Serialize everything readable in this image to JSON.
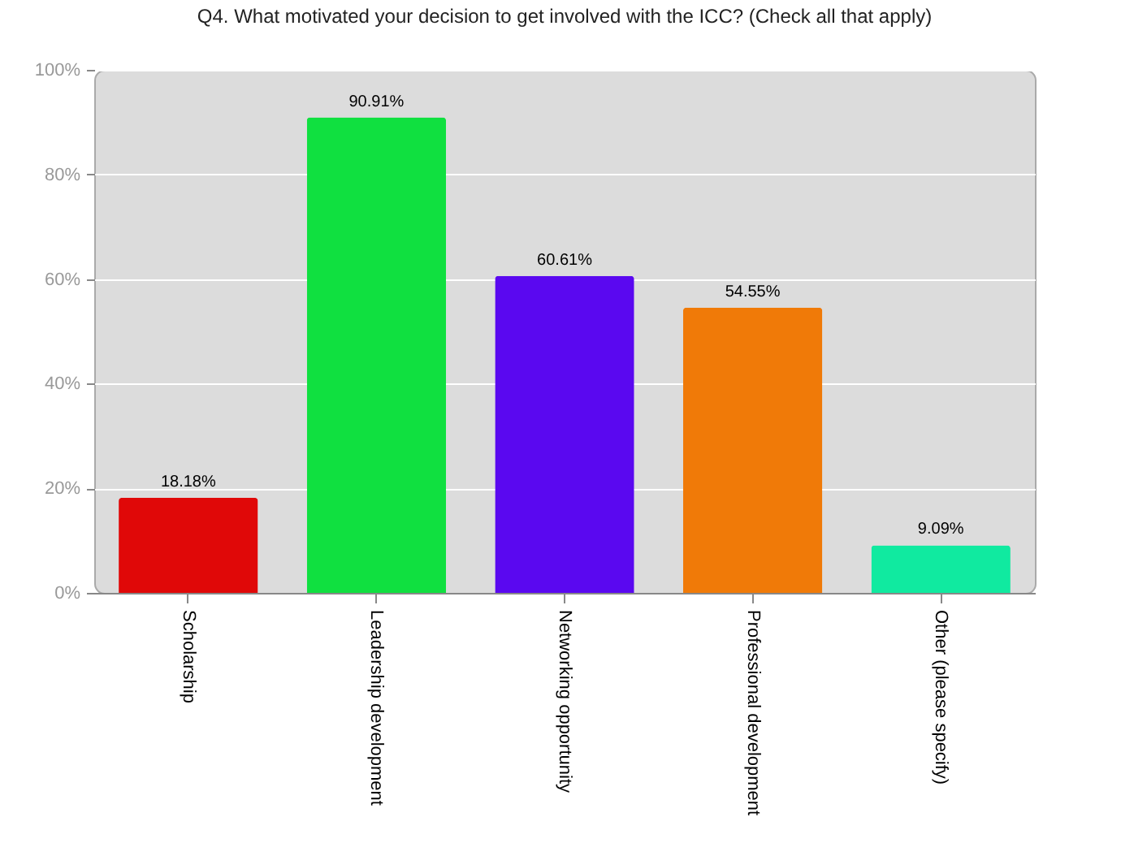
{
  "chart_data": {
    "type": "bar",
    "title": "Q4. What motivated your decision to get involved with the ICC? (Check all that apply)",
    "categories": [
      "Scholarship",
      "Leadership development",
      "Networking opportunity",
      "Professional development",
      "Other (please specify)"
    ],
    "values": [
      18.18,
      90.91,
      60.61,
      54.55,
      9.09
    ],
    "value_labels": [
      "18.18%",
      "90.91%",
      "60.61%",
      "54.55%",
      "9.09%"
    ],
    "colors": [
      "#e00808",
      "#10e040",
      "#5a08f0",
      "#f07a08",
      "#10eaa0"
    ],
    "ylim": [
      0,
      100
    ],
    "yticks": [
      {
        "value": 0,
        "label": "0%"
      },
      {
        "value": 20,
        "label": "20%"
      },
      {
        "value": 40,
        "label": "40%"
      },
      {
        "value": 60,
        "label": "60%"
      },
      {
        "value": 80,
        "label": "80%"
      },
      {
        "value": 100,
        "label": "100%"
      }
    ],
    "grid": "y",
    "legend": false
  }
}
